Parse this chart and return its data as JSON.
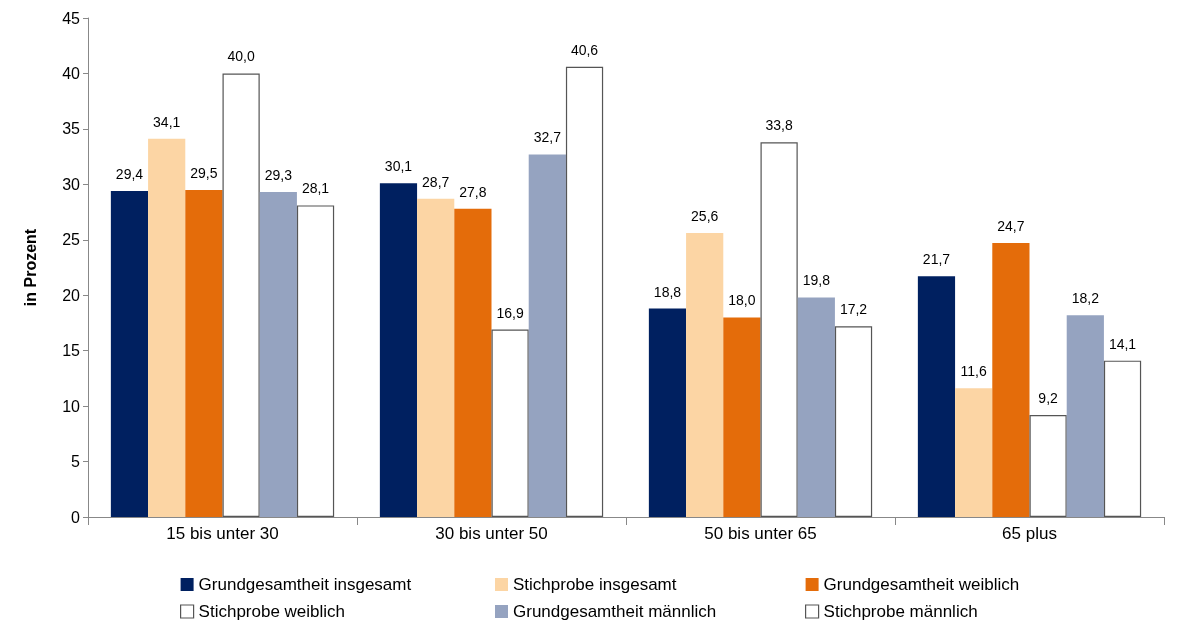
{
  "chart_data": {
    "type": "bar",
    "ylabel": "in Prozent",
    "categories": [
      "15 bis unter 30",
      "30 bis unter 50",
      "50 bis unter 65",
      "65 plus"
    ],
    "ylim": [
      0,
      45
    ],
    "yticks": [
      0,
      5,
      10,
      15,
      20,
      25,
      30,
      35,
      40,
      45
    ],
    "grid": false,
    "legend": "bottom",
    "series": [
      {
        "name": "Grundgesamtheit insgesamt",
        "color": "#002060",
        "values": [
          29.4,
          30.1,
          18.8,
          21.7
        ],
        "value_labels": [
          "29,4",
          "30,1",
          "18,8",
          "21,7"
        ]
      },
      {
        "name": "Stichprobe insgesamt",
        "color": "#fcd5a4",
        "values": [
          34.1,
          28.7,
          25.6,
          11.6
        ],
        "value_labels": [
          "34,1",
          "28,7",
          "25,6",
          "11,6"
        ]
      },
      {
        "name": "Grundgesamtheit weiblich",
        "color": "#e46c0a",
        "values": [
          29.5,
          27.8,
          18.0,
          24.7
        ],
        "value_labels": [
          "29,5",
          "27,8",
          "18,0",
          "24,7"
        ]
      },
      {
        "name": "Stichprobe weiblich",
        "color": "#ffffff",
        "values": [
          40.0,
          16.9,
          33.8,
          9.2
        ],
        "value_labels": [
          "40,0",
          "16,9",
          "33,8",
          "9,2"
        ]
      },
      {
        "name": "Grundgesamtheit männlich",
        "color": "#95a3c0",
        "values": [
          29.3,
          32.7,
          19.8,
          18.2
        ],
        "value_labels": [
          "29,3",
          "32,7",
          "19,8",
          "18,2"
        ]
      },
      {
        "name": "Stichprobe männlich",
        "color": "#ffffff",
        "values": [
          28.1,
          40.6,
          17.2,
          14.1
        ],
        "value_labels": [
          "28,1",
          "40,6",
          "17,2",
          "14,1"
        ]
      }
    ]
  }
}
